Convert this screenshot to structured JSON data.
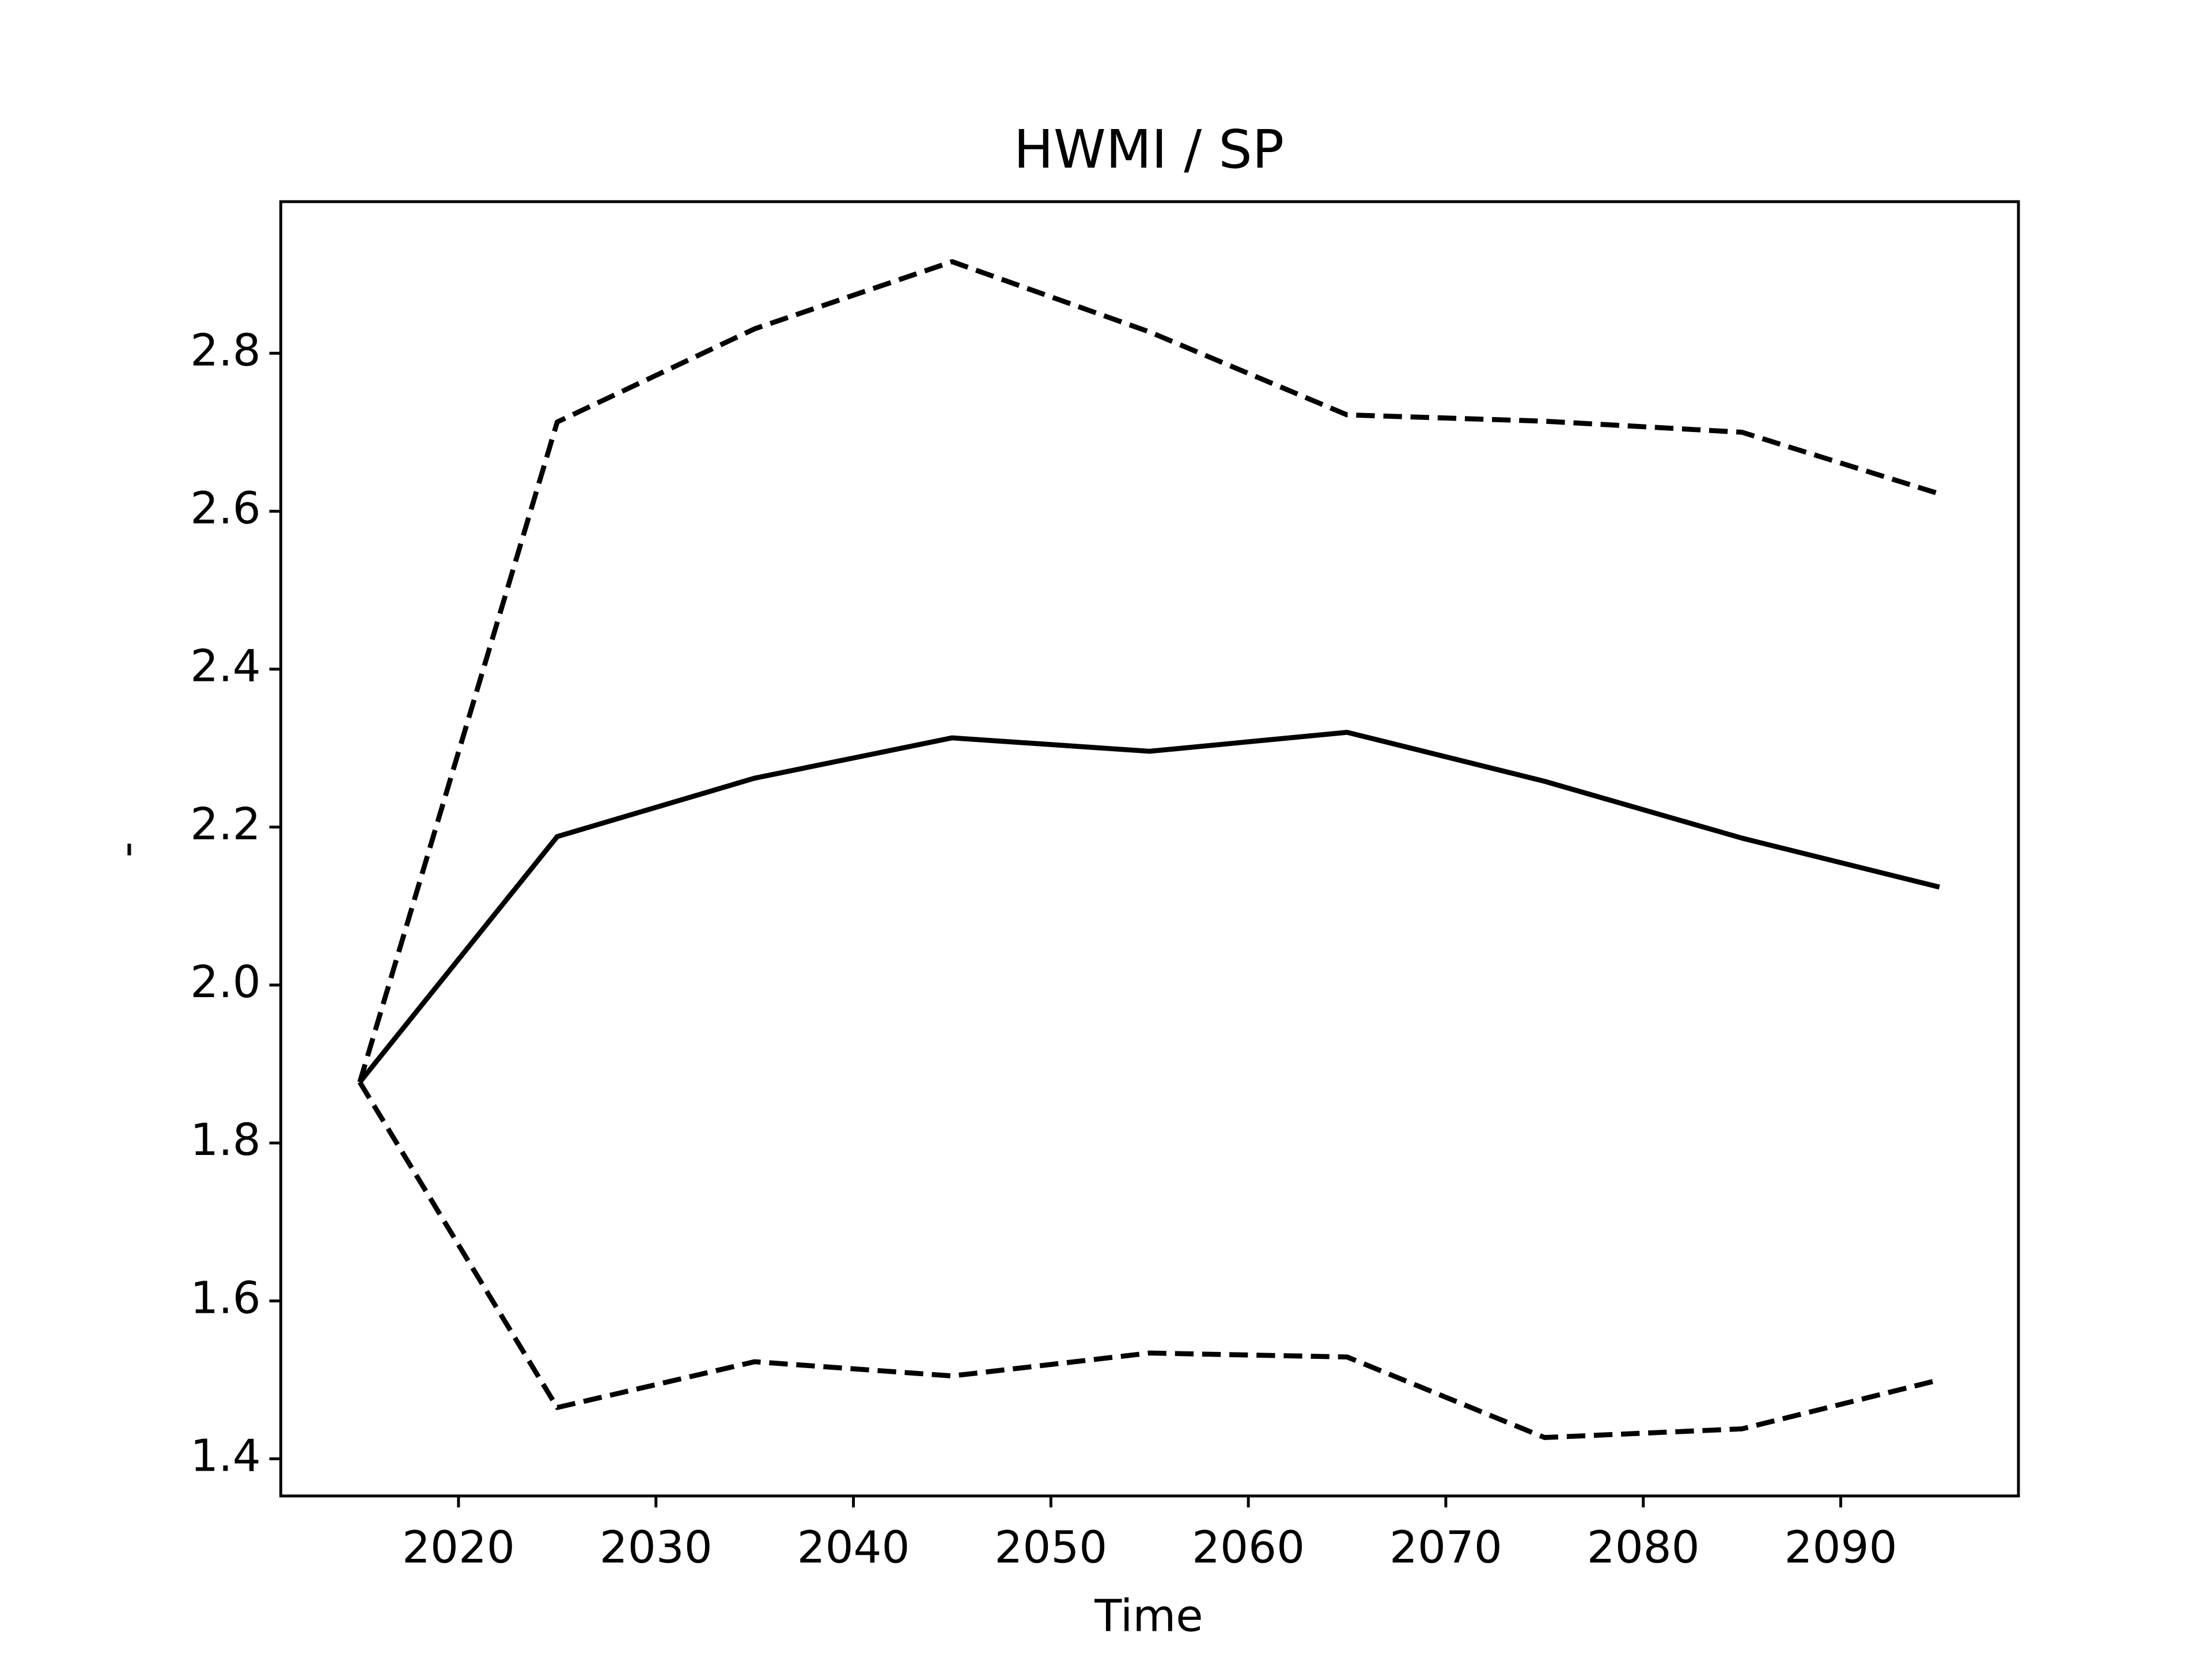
{
  "chart_data": {
    "type": "line",
    "title": "HWMI / SP",
    "xlabel": "Time",
    "ylabel": "-",
    "x": [
      2015,
      2025,
      2035,
      2045,
      2055,
      2065,
      2075,
      2085,
      2095
    ],
    "series": [
      {
        "color": "#000000",
        "linestyle": "solid",
        "values": [
          1.877,
          2.188,
          2.262,
          2.313,
          2.296,
          2.32,
          2.258,
          2.186,
          2.124
        ]
      },
      {
        "color": "#000000",
        "linestyle": "dashed",
        "values": [
          1.877,
          2.713,
          2.831,
          2.916,
          2.827,
          2.722,
          2.714,
          2.7,
          2.622
        ]
      },
      {
        "color": "#000000",
        "linestyle": "dashed",
        "values": [
          1.877,
          1.465,
          1.523,
          1.505,
          1.534,
          1.529,
          1.427,
          1.438,
          1.5
        ]
      }
    ],
    "xlim": [
      2011,
      2099
    ],
    "xticks": [
      2020,
      2030,
      2040,
      2050,
      2060,
      2070,
      2080,
      2090
    ],
    "ylim": [
      1.353,
      2.992
    ],
    "yticks": [
      1.4,
      1.6,
      1.8,
      {
        "value": 2,
        "label": "2.0"
      },
      2.2,
      2.4,
      2.6,
      2.8
    ],
    "grid": false
  }
}
